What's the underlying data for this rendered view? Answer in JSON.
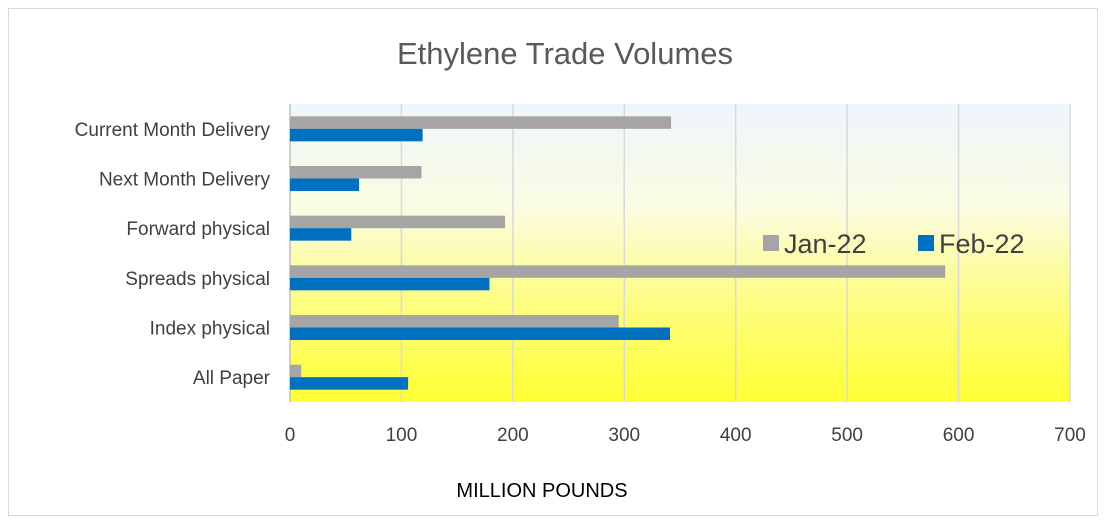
{
  "chart_data": {
    "type": "bar",
    "orientation": "horizontal",
    "title": "Ethylene Trade Volumes",
    "xlabel": "MILLION POUNDS",
    "ylabel": "",
    "categories": [
      "Current Month Delivery",
      "Next Month Delivery",
      "Forward physical",
      "Spreads physical",
      "Index physical",
      "All Paper"
    ],
    "series": [
      {
        "name": "Jan-22",
        "color": "#a5a5a5",
        "values": [
          342,
          118,
          193,
          588,
          295,
          10
        ]
      },
      {
        "name": "Feb-22",
        "color": "#0070c0",
        "values": [
          119,
          62,
          55,
          179,
          341,
          106
        ]
      }
    ],
    "xlim": [
      0,
      700
    ],
    "xticks": [
      0,
      100,
      200,
      300,
      400,
      500,
      600,
      700
    ],
    "grid": true,
    "legend_position": "right, inside plot",
    "plot_background": "gradient from light blue-white (top) to yellow (bottom)"
  }
}
